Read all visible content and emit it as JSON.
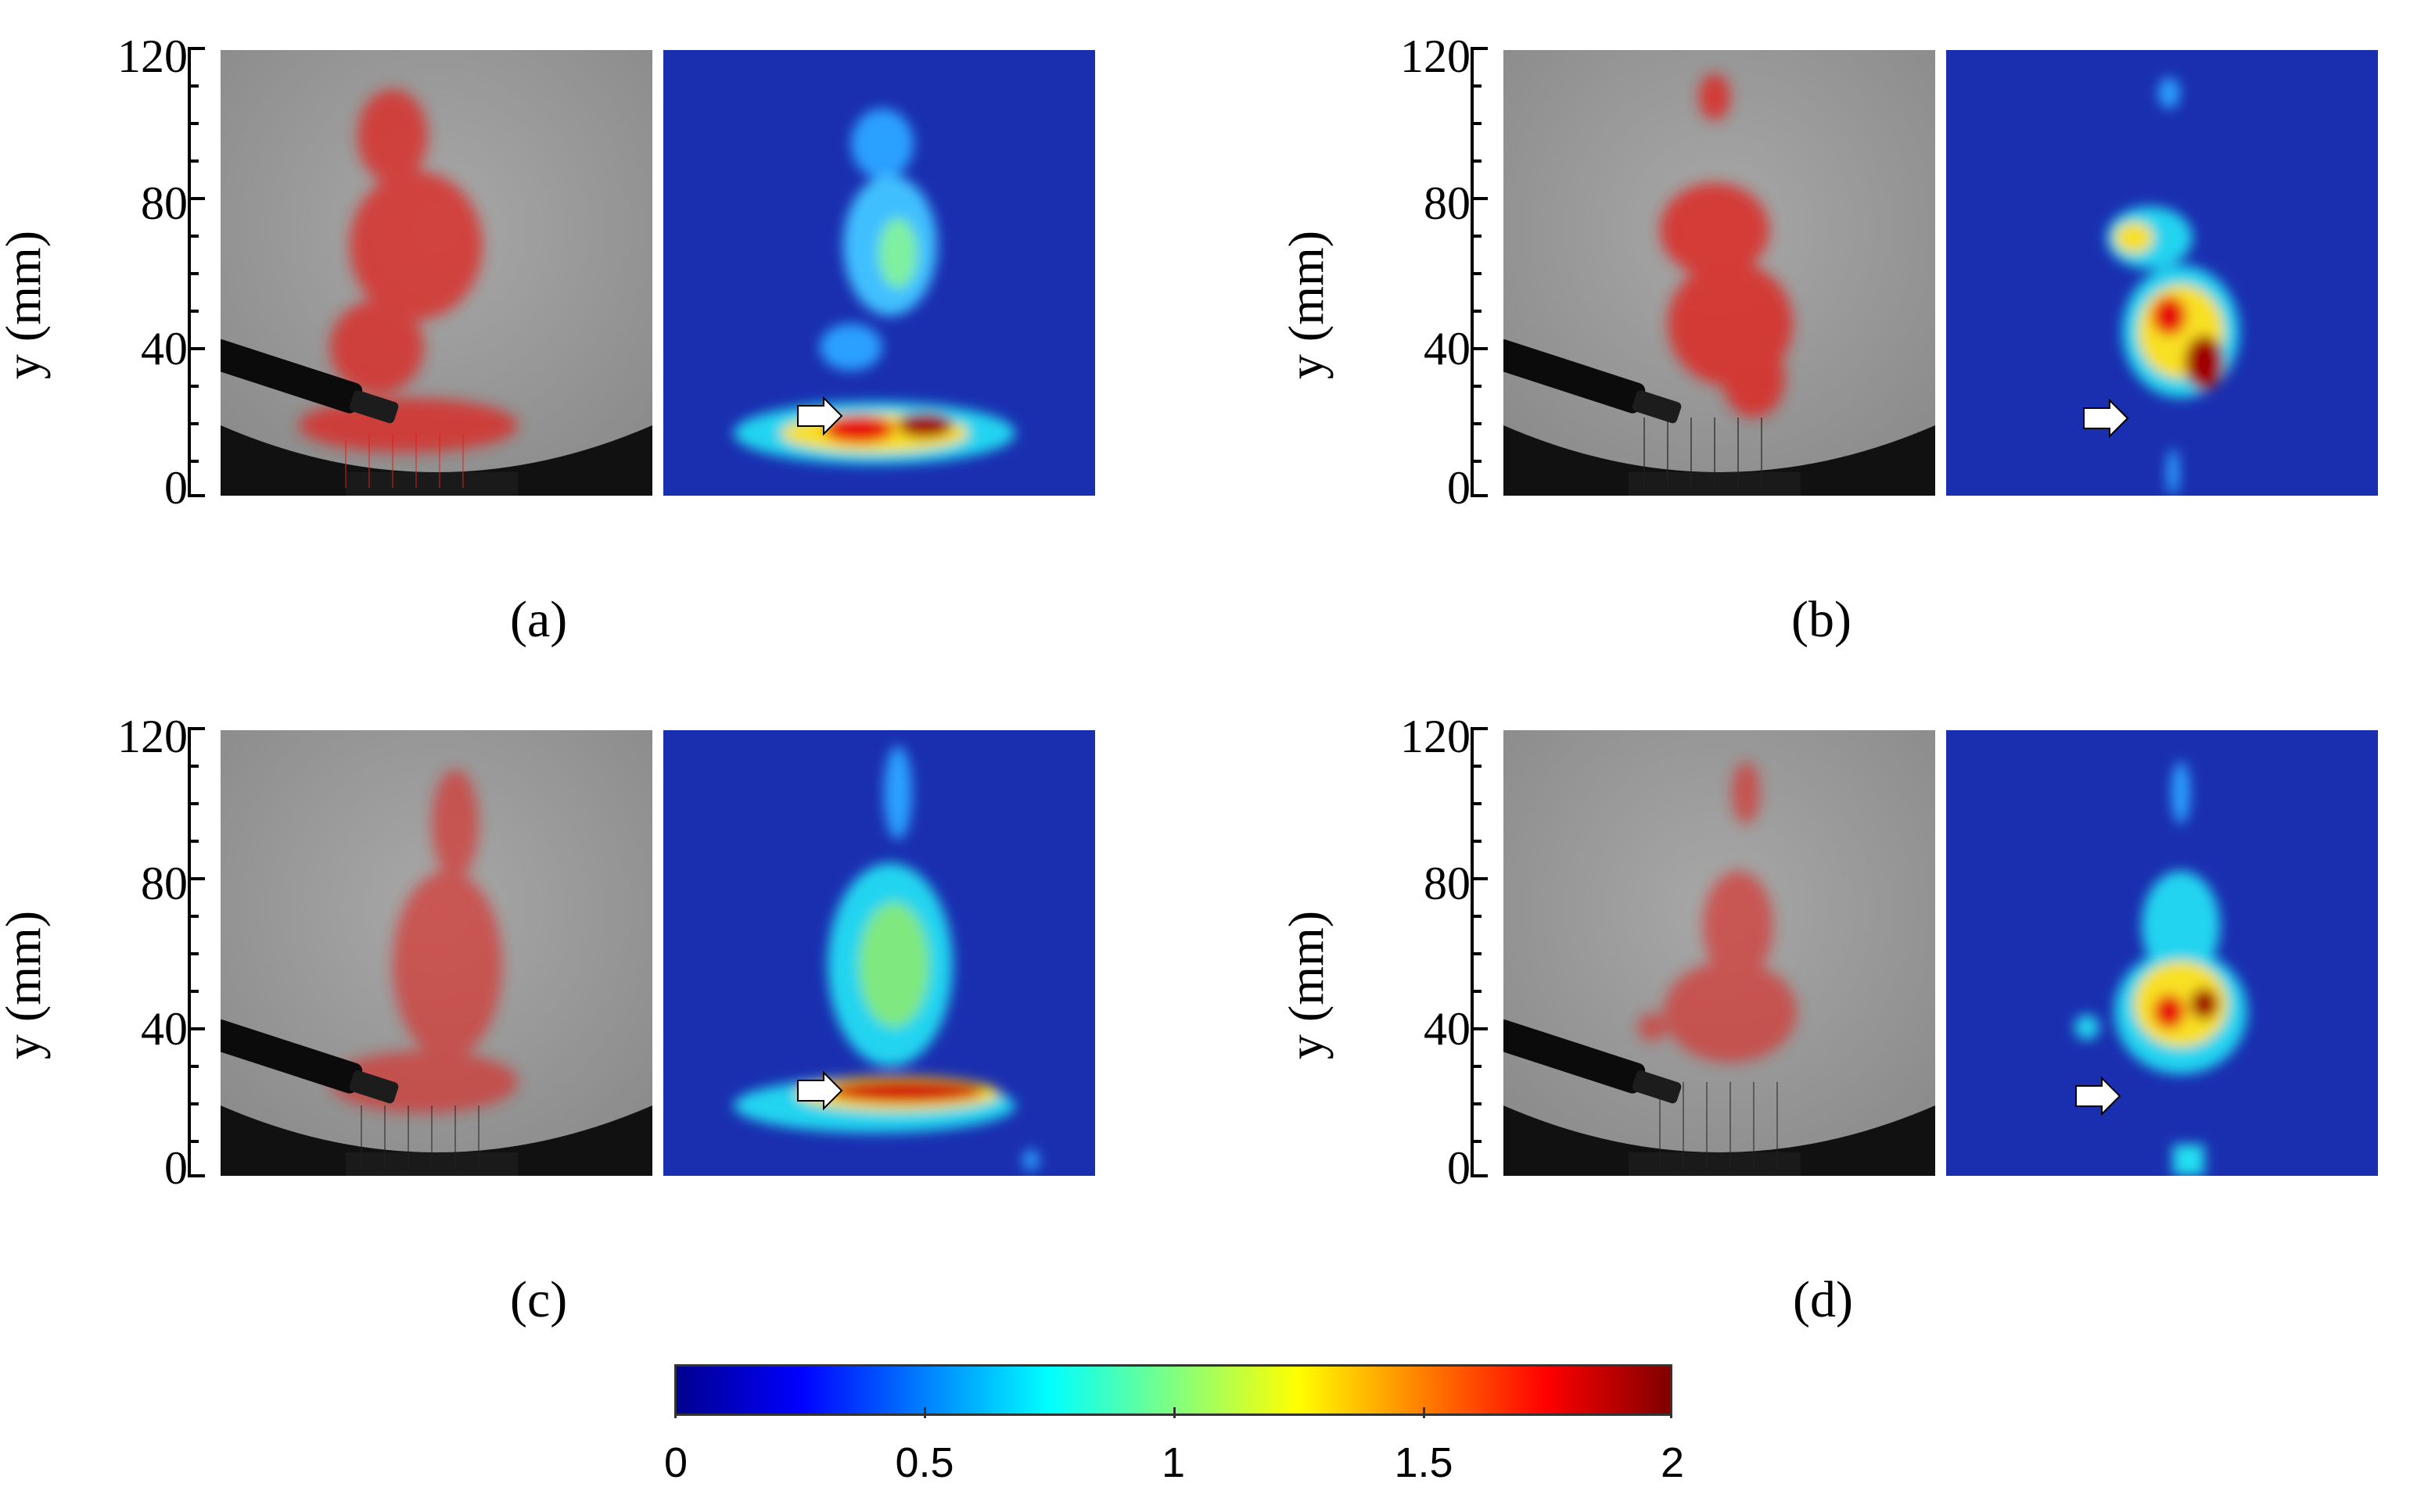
{
  "axis": {
    "ylabel": "y (mm)",
    "ticks": [
      "120",
      "80",
      "40",
      "0"
    ]
  },
  "panels": [
    {
      "id": "a",
      "label": "(a)"
    },
    {
      "id": "b",
      "label": "(b)"
    },
    {
      "id": "c",
      "label": "(c)"
    },
    {
      "id": "d",
      "label": "(d)"
    }
  ],
  "colorbar": {
    "min": 0,
    "max": 2,
    "colormap": "jet",
    "tick_labels": [
      "0",
      "0.5",
      "1",
      "1.5",
      "2"
    ]
  },
  "colors": {
    "photo_background": "#9a9a9a",
    "flow_overlay": "#e0201a",
    "heat_background": "#1a2fb0",
    "arrow": "#ffffff"
  }
}
